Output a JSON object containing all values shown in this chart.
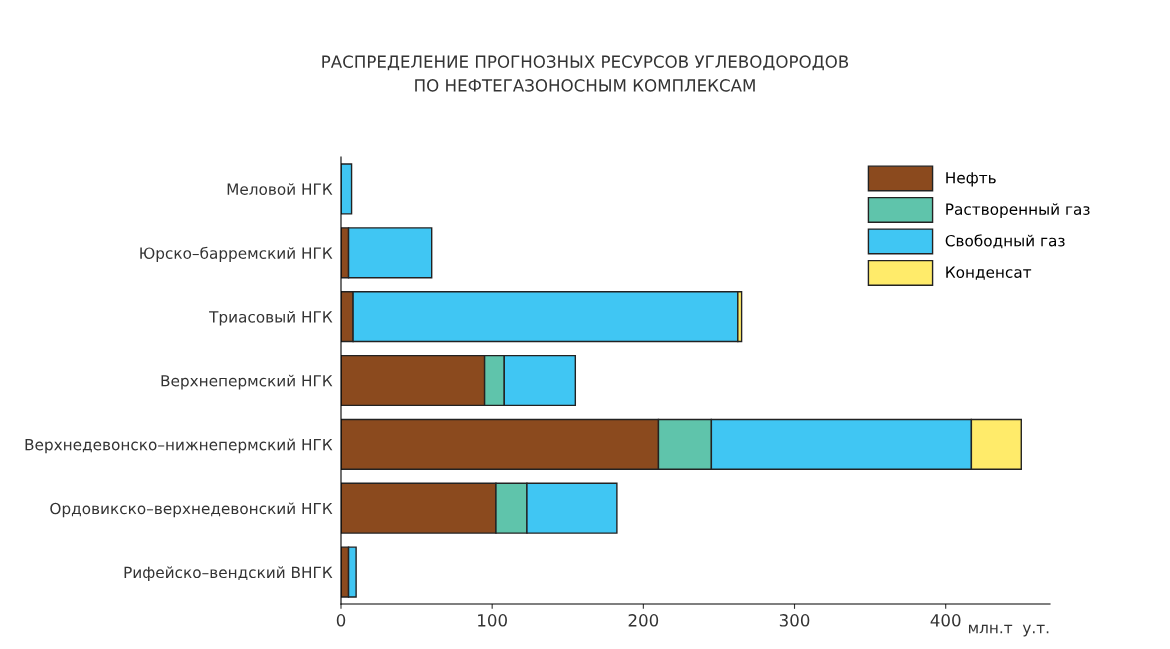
{
  "chart_data": {
    "type": "bar",
    "orientation": "horizontal",
    "stacked": true,
    "title": "РАСПРЕДЕЛЕНИЕ ПРОГНОЗНЫХ РЕСУРСОВ УГЛЕВОДОРОДОВ\nПО НЕФТЕГАЗОНОСНЫМ КОМПЛЕКСАМ",
    "xlabel": "млн.т  у.т.",
    "categories": [
      "Меловой НГК",
      "Юрско–барремский НГК",
      "Триасовый НГК",
      "Верхнепермский НГК",
      "Верхнедевонско–нижнепермский НГК",
      "Ордовикско–верхнедевонский НГК",
      "Рифейско–вендский ВНГК"
    ],
    "series": [
      {
        "name": "Нефть",
        "color": "#8b4a1e",
        "values": [
          0,
          5,
          8,
          95,
          210,
          102.5,
          5
        ]
      },
      {
        "name": "Растворенный газ",
        "color": "#5fc4ab",
        "values": [
          0,
          0,
          0,
          13,
          35,
          20.5,
          0
        ]
      },
      {
        "name": "Свободный газ",
        "color": "#40c6f3",
        "values": [
          7,
          55,
          254.5,
          47,
          172,
          59.5,
          5
        ]
      },
      {
        "name": "Конденсат",
        "color": "#ffeb6a",
        "values": [
          0,
          0,
          2.5,
          0,
          33,
          0,
          0
        ]
      }
    ],
    "xlim": [
      0,
      469
    ],
    "xticks": [
      0,
      100,
      200,
      300,
      400
    ],
    "grid": false,
    "legend": "top right"
  }
}
